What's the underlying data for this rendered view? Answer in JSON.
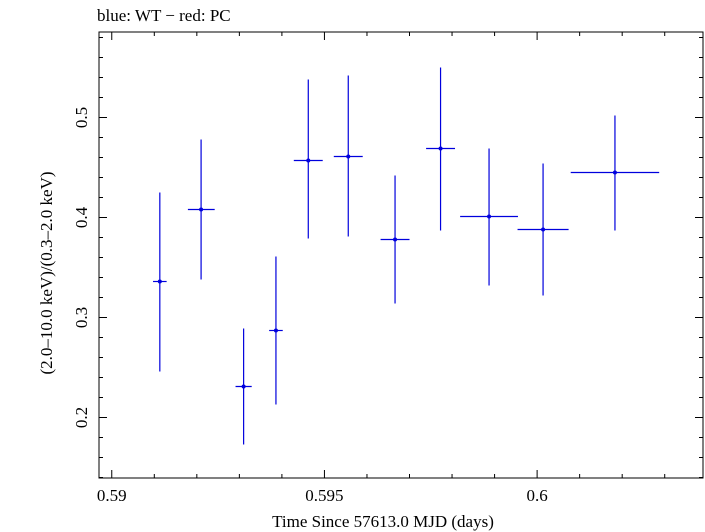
{
  "chart_data": {
    "type": "scatter",
    "title": "blue: WT − red: PC",
    "xlabel": "Time Since 57613.0 MJD (days)",
    "ylabel": "(2.0–10.0 keV)/(0.3–2.0 keV)",
    "xlim": [
      0.5897,
      0.6039
    ],
    "ylim": [
      0.1395,
      0.5855
    ],
    "x_ticks": [
      {
        "value": 0.59,
        "label": "0.59"
      },
      {
        "value": 0.595,
        "label": "0.595"
      },
      {
        "value": 0.6,
        "label": "0.6"
      }
    ],
    "y_ticks": [
      {
        "value": 0.2,
        "label": "0.2"
      },
      {
        "value": 0.3,
        "label": "0.3"
      },
      {
        "value": 0.4,
        "label": "0.4"
      },
      {
        "value": 0.5,
        "label": "0.5"
      }
    ],
    "grid": false,
    "series": [
      {
        "color": "#0000dd",
        "points": [
          {
            "x": 0.59113,
            "y": 0.336,
            "xerr_lo": 0.00016,
            "xerr_hi": 0.00016,
            "yerr_lo": 0.09,
            "yerr_hi": 0.089
          },
          {
            "x": 0.5921,
            "y": 0.408,
            "xerr_lo": 0.00031,
            "xerr_hi": 0.00032,
            "yerr_lo": 0.07,
            "yerr_hi": 0.07
          },
          {
            "x": 0.5931,
            "y": 0.231,
            "xerr_lo": 0.00019,
            "xerr_hi": 0.00019,
            "yerr_lo": 0.058,
            "yerr_hi": 0.058
          },
          {
            "x": 0.59386,
            "y": 0.287,
            "xerr_lo": 0.00016,
            "xerr_hi": 0.00016,
            "yerr_lo": 0.074,
            "yerr_hi": 0.074
          },
          {
            "x": 0.59462,
            "y": 0.457,
            "xerr_lo": 0.00034,
            "xerr_hi": 0.00034,
            "yerr_lo": 0.078,
            "yerr_hi": 0.081
          },
          {
            "x": 0.59556,
            "y": 0.461,
            "xerr_lo": 0.00034,
            "xerr_hi": 0.00034,
            "yerr_lo": 0.08,
            "yerr_hi": 0.081
          },
          {
            "x": 0.59666,
            "y": 0.378,
            "xerr_lo": 0.00034,
            "xerr_hi": 0.00034,
            "yerr_lo": 0.064,
            "yerr_hi": 0.064
          },
          {
            "x": 0.59773,
            "y": 0.469,
            "xerr_lo": 0.00034,
            "xerr_hi": 0.00034,
            "yerr_lo": 0.082,
            "yerr_hi": 0.081
          },
          {
            "x": 0.59887,
            "y": 0.401,
            "xerr_lo": 0.00068,
            "xerr_hi": 0.00068,
            "yerr_lo": 0.069,
            "yerr_hi": 0.068
          },
          {
            "x": 0.60014,
            "y": 0.388,
            "xerr_lo": 0.0006,
            "xerr_hi": 0.0006,
            "yerr_lo": 0.066,
            "yerr_hi": 0.066
          },
          {
            "x": 0.60183,
            "y": 0.445,
            "xerr_lo": 0.00104,
            "xerr_hi": 0.00104,
            "yerr_lo": 0.058,
            "yerr_hi": 0.057
          }
        ]
      }
    ]
  }
}
